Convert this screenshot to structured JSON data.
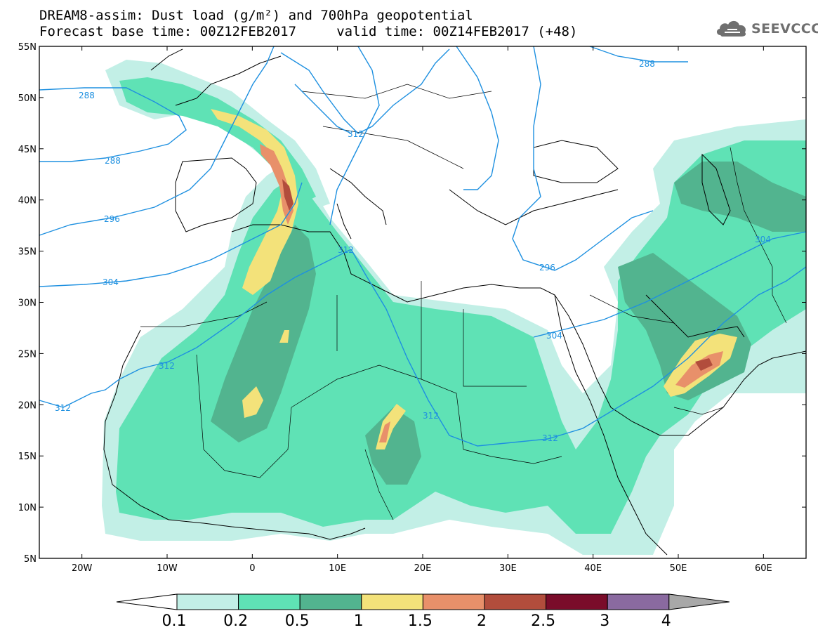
{
  "title": {
    "line1": "DREAM8-assim: Dust load (g/m²) and 700hPa geopotential",
    "line2": "Forecast base time: 00Z12FEB2017     valid time: 00Z14FEB2017 (+48)"
  },
  "logo": {
    "text": "SEEVCCC",
    "icon": "cloud-icon"
  },
  "map": {
    "lon_range": [
      -25,
      65
    ],
    "lat_range": [
      5,
      55
    ],
    "lat_ticks": [
      "55N",
      "50N",
      "45N",
      "40N",
      "35N",
      "30N",
      "25N",
      "20N",
      "15N",
      "10N",
      "5N"
    ],
    "lon_ticks": [
      "20W",
      "10W",
      "0",
      "10E",
      "20E",
      "30E",
      "40E",
      "50E",
      "60E"
    ],
    "contour_labels": [
      "288",
      "288",
      "288",
      "296",
      "296",
      "304",
      "304",
      "304",
      "312",
      "312",
      "312",
      "312",
      "312",
      "312"
    ],
    "geopotential_color": "#1e90e0"
  },
  "colorbar": {
    "labels": [
      "0.1",
      "0.2",
      "0.5",
      "1",
      "1.5",
      "2",
      "2.5",
      "3",
      "4"
    ],
    "colors": [
      "#c2efe6",
      "#5fe2b5",
      "#52b48f",
      "#f3e27a",
      "#e8906a",
      "#b24d3c",
      "#7a0c2a",
      "#8a6aa0"
    ],
    "under_color": "#ffffff",
    "over_color": "#a8a8a8"
  },
  "dust_colors": {
    "c1": "#c2efe6",
    "c2": "#5fe2b5",
    "c3": "#52b48f",
    "c4": "#f3e27a",
    "c5": "#e8906a",
    "c6": "#b24d3c"
  }
}
